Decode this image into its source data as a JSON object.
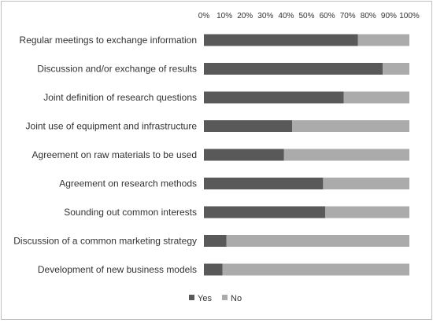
{
  "chart_data": {
    "type": "bar",
    "orientation": "horizontal",
    "stacked": "percent",
    "categories": [
      "Regular meetings to exchange information",
      "Discussion and/or exchange of results",
      "Joint definition of research questions",
      "Joint use of equipment and infrastructure",
      "Agreement on raw materials to be used",
      "Agreement on research methods",
      "Sounding out common interests",
      "Discussion of a common marketing strategy",
      "Development of new business models"
    ],
    "series": [
      {
        "name": "Yes",
        "color": "#595959",
        "values": [
          75,
          87,
          68,
          43,
          39,
          58,
          59,
          11,
          9
        ]
      },
      {
        "name": "No",
        "color": "#ababab",
        "values": [
          25,
          13,
          32,
          57,
          61,
          42,
          41,
          89,
          91
        ]
      }
    ],
    "x_ticks": [
      "0%",
      "10%",
      "20%",
      "30%",
      "40%",
      "50%",
      "60%",
      "70%",
      "80%",
      "90%",
      "100%"
    ],
    "xlim": [
      0,
      100
    ],
    "x_axis_position": "top",
    "grid": false,
    "legend": "bottom-center",
    "title": "",
    "xlabel": "",
    "ylabel": ""
  }
}
